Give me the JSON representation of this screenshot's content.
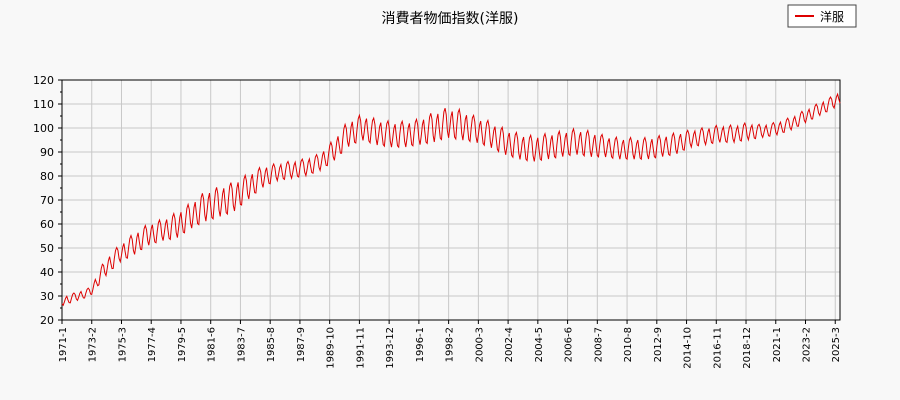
{
  "chart_data": {
    "type": "line",
    "title": "消費者物価指数(洋服)",
    "xlabel": "",
    "ylabel": "",
    "ylim": [
      20,
      120
    ],
    "yticks": [
      20,
      30,
      40,
      50,
      60,
      70,
      80,
      90,
      100,
      110,
      120
    ],
    "xlim": [
      "1971-1",
      "2025-7"
    ],
    "xtick_labels": [
      "1971-1",
      "1973-2",
      "1975-3",
      "1977-4",
      "1979-5",
      "1981-6",
      "1983-7",
      "1985-8",
      "1987-9",
      "1989-10",
      "1991-11",
      "1993-12",
      "1996-1",
      "1998-2",
      "2000-3",
      "2002-4",
      "2004-5",
      "2006-6",
      "2008-7",
      "2010-8",
      "2012-9",
      "2014-10",
      "2016-11",
      "2018-12",
      "2021-1",
      "2023-2",
      "2025-3"
    ],
    "grid": true,
    "legend": "top-right",
    "series": [
      {
        "name": "洋服",
        "color": "#dd0000",
        "x": [
          "1971-1",
          "1972-1",
          "1973-1",
          "1974-1",
          "1975-1",
          "1976-1",
          "1977-1",
          "1978-1",
          "1979-1",
          "1980-1",
          "1981-1",
          "1982-1",
          "1983-1",
          "1984-1",
          "1985-1",
          "1986-1",
          "1987-1",
          "1988-1",
          "1989-1",
          "1990-1",
          "1991-1",
          "1992-1",
          "1993-1",
          "1994-1",
          "1995-1",
          "1996-1",
          "1997-1",
          "1998-1",
          "1999-1",
          "2000-1",
          "2001-1",
          "2002-1",
          "2003-1",
          "2004-1",
          "2005-1",
          "2006-1",
          "2007-1",
          "2008-1",
          "2009-1",
          "2010-1",
          "2011-1",
          "2012-1",
          "2013-1",
          "2014-1",
          "2015-1",
          "2016-1",
          "2017-1",
          "2018-1",
          "2019-1",
          "2020-1",
          "2021-1",
          "2022-1",
          "2023-1",
          "2024-1",
          "2025-1",
          "2025-7"
        ],
        "y": [
          28,
          30,
          32,
          42,
          48,
          52,
          56,
          58,
          60,
          64,
          68,
          70,
          72,
          76,
          80,
          82,
          83,
          84,
          86,
          91,
          98,
          101,
          99,
          98,
          98,
          99,
          101,
          103,
          102,
          100,
          98,
          95,
          93,
          92,
          93,
          94,
          95,
          94,
          93,
          92,
          92,
          92,
          93,
          94,
          96,
          97,
          98,
          98,
          99,
          99,
          100,
          102,
          105,
          108,
          111,
          113
        ],
        "seasonal_amplitude": [
          2,
          2,
          2,
          4,
          4,
          5,
          5,
          5,
          6,
          6,
          7,
          7,
          7,
          6,
          5,
          4,
          4,
          4,
          4,
          5,
          6,
          6,
          6,
          6,
          6,
          6,
          7,
          7,
          7,
          6,
          6,
          6,
          6,
          6,
          6,
          6,
          6,
          6,
          5,
          5,
          5,
          5,
          5,
          5,
          4,
          4,
          4,
          4,
          4,
          3,
          3,
          3,
          3,
          3,
          3,
          3
        ]
      }
    ]
  }
}
